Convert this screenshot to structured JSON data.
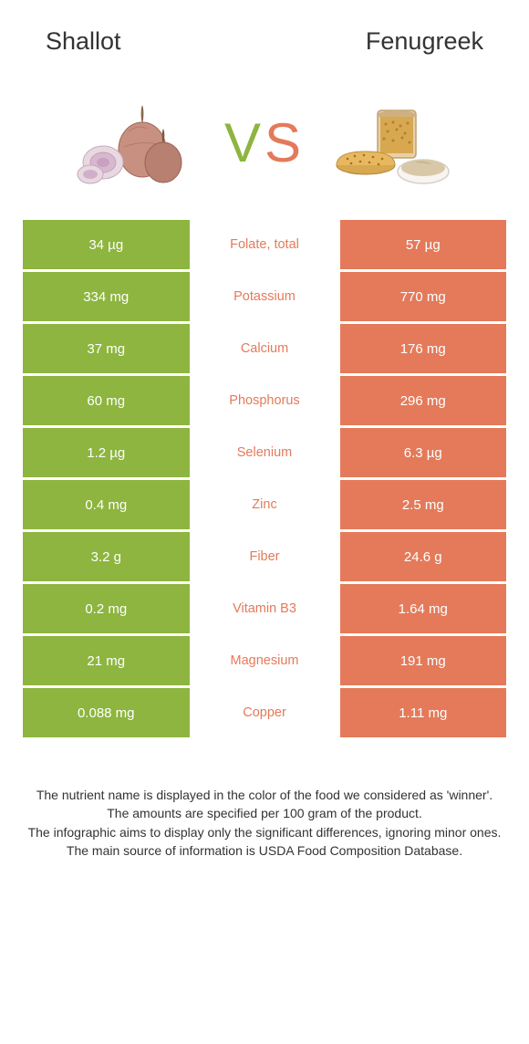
{
  "header": {
    "left_title": "Shallot",
    "right_title": "Fenugreek"
  },
  "vs": {
    "v": "V",
    "s": "S"
  },
  "colors": {
    "left": "#8db53f",
    "right": "#e47a5a",
    "text": "#333333",
    "cell_text": "#ffffff",
    "background": "#ffffff"
  },
  "rows": [
    {
      "left": "34 µg",
      "center": "Folate, total",
      "winner": "right",
      "right": "57 µg"
    },
    {
      "left": "334 mg",
      "center": "Potassium",
      "winner": "right",
      "right": "770 mg"
    },
    {
      "left": "37 mg",
      "center": "Calcium",
      "winner": "right",
      "right": "176 mg"
    },
    {
      "left": "60 mg",
      "center": "Phosphorus",
      "winner": "right",
      "right": "296 mg"
    },
    {
      "left": "1.2 µg",
      "center": "Selenium",
      "winner": "right",
      "right": "6.3 µg"
    },
    {
      "left": "0.4 mg",
      "center": "Zinc",
      "winner": "right",
      "right": "2.5 mg"
    },
    {
      "left": "3.2 g",
      "center": "Fiber",
      "winner": "right",
      "right": "24.6 g"
    },
    {
      "left": "0.2 mg",
      "center": "Vitamin B3",
      "winner": "right",
      "right": "1.64 mg"
    },
    {
      "left": "21 mg",
      "center": "Magnesium",
      "winner": "right",
      "right": "191 mg"
    },
    {
      "left": "0.088 mg",
      "center": "Copper",
      "winner": "right",
      "right": "1.11 mg"
    }
  ],
  "footer": {
    "line1": "The nutrient name is displayed in the color of the food we considered as 'winner'.",
    "line2": "The amounts are specified per 100 gram of the product.",
    "line3": "The infographic aims to display only the significant differences, ignoring minor ones.",
    "line4": "The main source of information is USDA Food Composition Database."
  }
}
